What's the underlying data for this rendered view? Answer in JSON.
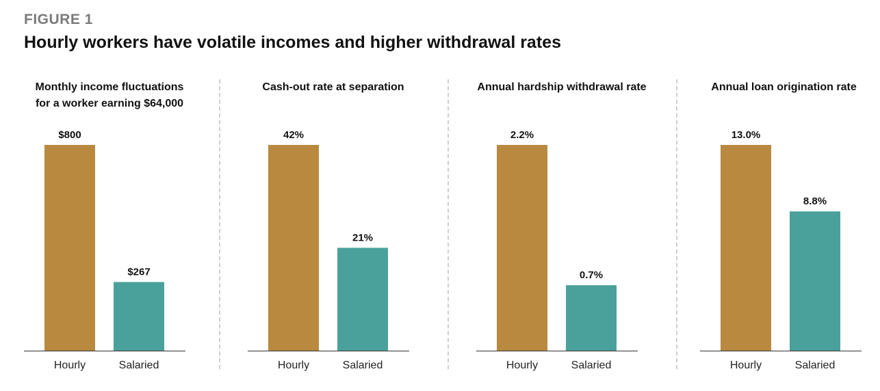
{
  "figure": {
    "label": "FIGURE 1",
    "title": "Hourly workers have volatile incomes and higher withdrawal rates"
  },
  "colors": {
    "hourly": "#b8893f",
    "salaried": "#4aa19c",
    "axis": "#333333",
    "divider": "#cfcfcf"
  },
  "chart_data": [
    {
      "type": "bar",
      "title_lines": [
        "Monthly income fluctuations",
        "for a worker earning $64,000"
      ],
      "categories": [
        "Hourly",
        "Salaried"
      ],
      "values": [
        800,
        267
      ],
      "value_labels": [
        "$800",
        "$267"
      ],
      "ylim": [
        0,
        800
      ]
    },
    {
      "type": "bar",
      "title_lines": [
        "Cash-out rate at separation"
      ],
      "categories": [
        "Hourly",
        "Salaried"
      ],
      "values": [
        42,
        21
      ],
      "value_labels": [
        "42%",
        "21%"
      ],
      "ylim": [
        0,
        42
      ]
    },
    {
      "type": "bar",
      "title_lines": [
        "Annual hardship withdrawal rate"
      ],
      "categories": [
        "Hourly",
        "Salaried"
      ],
      "values": [
        2.2,
        0.7
      ],
      "value_labels": [
        "2.2%",
        "0.7%"
      ],
      "ylim": [
        0,
        2.2
      ]
    },
    {
      "type": "bar",
      "title_lines": [
        "Annual loan origination rate"
      ],
      "categories": [
        "Hourly",
        "Salaried"
      ],
      "values": [
        13.0,
        8.8
      ],
      "value_labels": [
        "13.0%",
        "8.8%"
      ],
      "ylim": [
        0,
        13.0
      ]
    }
  ]
}
